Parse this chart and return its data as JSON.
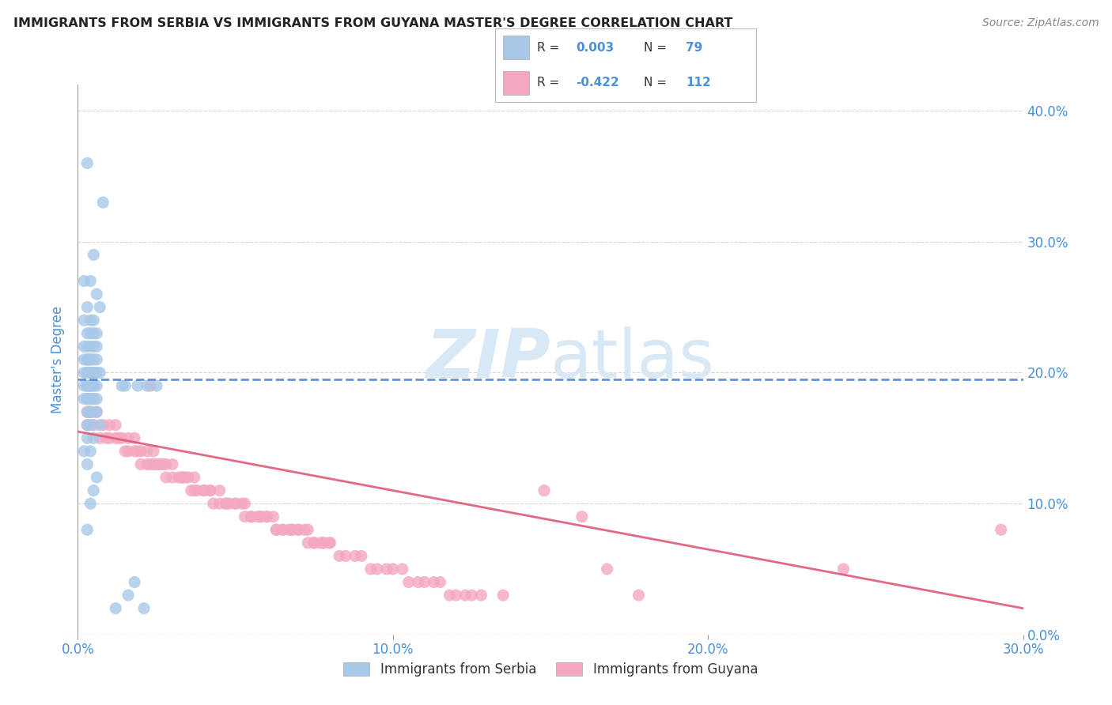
{
  "title": "IMMIGRANTS FROM SERBIA VS IMMIGRANTS FROM GUYANA MASTER'S DEGREE CORRELATION CHART",
  "source": "Source: ZipAtlas.com",
  "xlim": [
    0.0,
    0.3
  ],
  "ylim": [
    0.0,
    0.42
  ],
  "serbia_label": "Immigrants from Serbia",
  "guyana_label": "Immigrants from Guyana",
  "serbia_R": 0.003,
  "serbia_N": 79,
  "guyana_R": -0.422,
  "guyana_N": 112,
  "serbia_color": "#a8c8e8",
  "guyana_color": "#f4a8c0",
  "serbia_line_color": "#5588cc",
  "guyana_line_color": "#e05878",
  "title_color": "#333333",
  "axis_color": "#4a90d9",
  "legend_r_color": "#4a90d9",
  "legend_n_color": "#333333",
  "watermark_color": "#d8e8f5",
  "background_color": "#ffffff",
  "grid_color": "#cccccc",
  "serbia_x": [
    0.003,
    0.008,
    0.005,
    0.002,
    0.004,
    0.006,
    0.003,
    0.007,
    0.004,
    0.005,
    0.002,
    0.003,
    0.004,
    0.006,
    0.005,
    0.003,
    0.002,
    0.004,
    0.005,
    0.006,
    0.003,
    0.004,
    0.002,
    0.003,
    0.005,
    0.004,
    0.006,
    0.003,
    0.002,
    0.004,
    0.005,
    0.003,
    0.004,
    0.006,
    0.005,
    0.003,
    0.007,
    0.004,
    0.003,
    0.005,
    0.006,
    0.004,
    0.003,
    0.005,
    0.002,
    0.004,
    0.003,
    0.006,
    0.005,
    0.004,
    0.003,
    0.002,
    0.005,
    0.004,
    0.003,
    0.006,
    0.004,
    0.005,
    0.003,
    0.007,
    0.004,
    0.003,
    0.005,
    0.002,
    0.004,
    0.003,
    0.006,
    0.005,
    0.004,
    0.003,
    0.015,
    0.019,
    0.022,
    0.018,
    0.012,
    0.025,
    0.014,
    0.021,
    0.016
  ],
  "serbia_y": [
    0.36,
    0.33,
    0.29,
    0.27,
    0.27,
    0.26,
    0.25,
    0.25,
    0.24,
    0.24,
    0.24,
    0.23,
    0.23,
    0.23,
    0.23,
    0.22,
    0.22,
    0.22,
    0.22,
    0.22,
    0.21,
    0.21,
    0.21,
    0.21,
    0.21,
    0.21,
    0.21,
    0.2,
    0.2,
    0.2,
    0.2,
    0.2,
    0.2,
    0.2,
    0.2,
    0.2,
    0.2,
    0.19,
    0.19,
    0.19,
    0.19,
    0.19,
    0.19,
    0.19,
    0.19,
    0.19,
    0.18,
    0.18,
    0.18,
    0.18,
    0.18,
    0.18,
    0.18,
    0.17,
    0.17,
    0.17,
    0.17,
    0.17,
    0.16,
    0.16,
    0.16,
    0.15,
    0.15,
    0.14,
    0.14,
    0.13,
    0.12,
    0.11,
    0.1,
    0.08,
    0.19,
    0.19,
    0.19,
    0.04,
    0.02,
    0.19,
    0.19,
    0.02,
    0.03
  ],
  "guyana_x": [
    0.003,
    0.005,
    0.007,
    0.009,
    0.01,
    0.012,
    0.013,
    0.015,
    0.016,
    0.018,
    0.019,
    0.02,
    0.022,
    0.023,
    0.024,
    0.025,
    0.027,
    0.028,
    0.03,
    0.032,
    0.033,
    0.034,
    0.036,
    0.037,
    0.038,
    0.04,
    0.042,
    0.043,
    0.045,
    0.047,
    0.048,
    0.05,
    0.052,
    0.053,
    0.055,
    0.057,
    0.058,
    0.06,
    0.062,
    0.063,
    0.065,
    0.067,
    0.068,
    0.07,
    0.072,
    0.073,
    0.075,
    0.077,
    0.078,
    0.08,
    0.003,
    0.004,
    0.006,
    0.008,
    0.01,
    0.012,
    0.014,
    0.016,
    0.018,
    0.02,
    0.022,
    0.024,
    0.026,
    0.028,
    0.03,
    0.033,
    0.035,
    0.037,
    0.04,
    0.042,
    0.045,
    0.047,
    0.05,
    0.053,
    0.055,
    0.058,
    0.06,
    0.063,
    0.065,
    0.068,
    0.07,
    0.073,
    0.075,
    0.078,
    0.08,
    0.083,
    0.085,
    0.088,
    0.09,
    0.093,
    0.095,
    0.098,
    0.1,
    0.103,
    0.105,
    0.108,
    0.11,
    0.113,
    0.115,
    0.118,
    0.12,
    0.123,
    0.125,
    0.128,
    0.023,
    0.135,
    0.148,
    0.16,
    0.168,
    0.178,
    0.243,
    0.293
  ],
  "guyana_y": [
    0.16,
    0.16,
    0.15,
    0.15,
    0.15,
    0.15,
    0.15,
    0.14,
    0.14,
    0.14,
    0.14,
    0.13,
    0.13,
    0.13,
    0.13,
    0.13,
    0.13,
    0.12,
    0.12,
    0.12,
    0.12,
    0.12,
    0.11,
    0.11,
    0.11,
    0.11,
    0.11,
    0.1,
    0.1,
    0.1,
    0.1,
    0.1,
    0.1,
    0.09,
    0.09,
    0.09,
    0.09,
    0.09,
    0.09,
    0.08,
    0.08,
    0.08,
    0.08,
    0.08,
    0.08,
    0.08,
    0.07,
    0.07,
    0.07,
    0.07,
    0.17,
    0.17,
    0.17,
    0.16,
    0.16,
    0.16,
    0.15,
    0.15,
    0.15,
    0.14,
    0.14,
    0.14,
    0.13,
    0.13,
    0.13,
    0.12,
    0.12,
    0.12,
    0.11,
    0.11,
    0.11,
    0.1,
    0.1,
    0.1,
    0.09,
    0.09,
    0.09,
    0.08,
    0.08,
    0.08,
    0.08,
    0.07,
    0.07,
    0.07,
    0.07,
    0.06,
    0.06,
    0.06,
    0.06,
    0.05,
    0.05,
    0.05,
    0.05,
    0.05,
    0.04,
    0.04,
    0.04,
    0.04,
    0.04,
    0.03,
    0.03,
    0.03,
    0.03,
    0.03,
    0.19,
    0.03,
    0.11,
    0.09,
    0.05,
    0.03,
    0.05,
    0.08
  ]
}
